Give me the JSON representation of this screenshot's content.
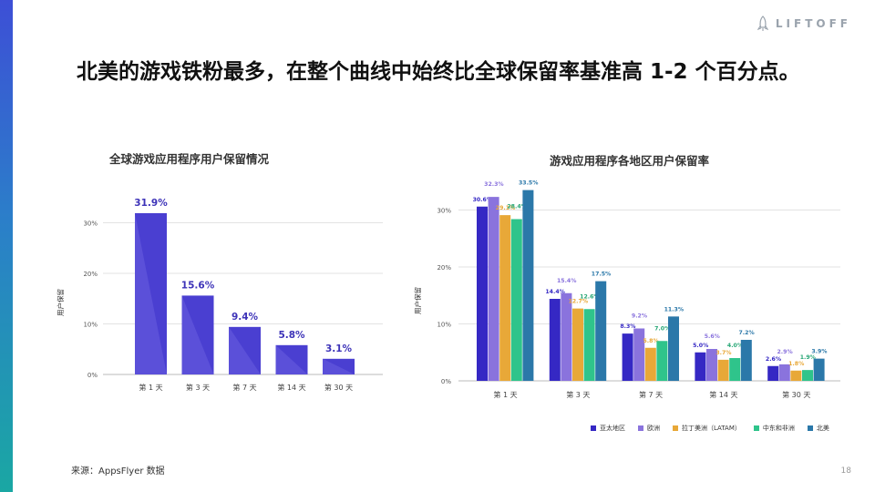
{
  "header": {
    "logo_text": "LIFTOFF",
    "title": "北美的游戏铁粉最多，在整个曲线中始终比全球保留率基准高 1-2 个百分点。"
  },
  "footer": {
    "source": "来源：AppsFlyer 数据",
    "page_number": "18"
  },
  "colors": {
    "global_bar": "#4a3fd1",
    "asia_pacific": "#3528c4",
    "europe": "#8a73dd",
    "latam": "#e8a838",
    "mena": "#2fc48b",
    "north_america": "#2b78a9",
    "sidebar_top": "#3d4fd6",
    "sidebar_bottom": "#1aa7a3"
  },
  "chart_data": [
    {
      "type": "bar",
      "title": "全球游戏应用程序用户保留情况",
      "ylabel": "用户保留",
      "xlabel": "",
      "ylim": [
        0,
        32
      ],
      "yticks": [
        0,
        10,
        20,
        30
      ],
      "ytick_labels": [
        "0%",
        "10%",
        "20%",
        "30%"
      ],
      "categories": [
        "第 1 天",
        "第 3 天",
        "第 7 天",
        "第 14 天",
        "第 30 天"
      ],
      "values": [
        31.9,
        15.6,
        9.4,
        5.8,
        3.1
      ],
      "value_labels": [
        "31.9%",
        "15.6%",
        "9.4%",
        "5.8%",
        "3.1%"
      ],
      "grid": true
    },
    {
      "type": "bar",
      "title": "游戏应用程序各地区用户保留率",
      "ylabel": "用户保留",
      "xlabel": "",
      "ylim": [
        0,
        34
      ],
      "yticks": [
        0,
        10,
        20,
        30
      ],
      "ytick_labels": [
        "0%",
        "10%",
        "20%",
        "30%"
      ],
      "categories": [
        "第 1 天",
        "第 3 天",
        "第 7 天",
        "第 14 天",
        "第 30 天"
      ],
      "legend_position": "bottom-right",
      "grid": true,
      "series": [
        {
          "name": "亚太地区",
          "values": [
            30.6,
            14.4,
            8.3,
            5.0,
            2.6
          ],
          "labels": [
            "30.6%",
            "14.4%",
            "8.3%",
            "5.0%",
            "2.6%"
          ],
          "color": "#3528c4"
        },
        {
          "name": "欧洲",
          "values": [
            32.3,
            15.4,
            9.2,
            5.6,
            2.9
          ],
          "labels": [
            "32.3%",
            "15.4%",
            "9.2%",
            "5.6%",
            "2.9%"
          ],
          "color": "#8a73dd"
        },
        {
          "name": "拉丁美洲（LATAM）",
          "values": [
            29.1,
            12.7,
            5.8,
            3.7,
            1.8
          ],
          "labels": [
            "29.1%",
            "12.7%",
            "5.8%",
            "3.7%",
            "1.8%"
          ],
          "color": "#e8a838"
        },
        {
          "name": "中东和非洲",
          "values": [
            28.4,
            12.6,
            7.0,
            4.0,
            1.9
          ],
          "labels": [
            "28.4%",
            "12.6%",
            "7.0%",
            "4.0%",
            "1.9%"
          ],
          "color": "#2fc48b"
        },
        {
          "name": "北美",
          "values": [
            33.5,
            17.5,
            11.3,
            7.2,
            3.9
          ],
          "labels": [
            "33.5%",
            "17.5%",
            "11.3%",
            "7.2%",
            "3.9%"
          ],
          "color": "#2b78a9"
        }
      ]
    }
  ]
}
